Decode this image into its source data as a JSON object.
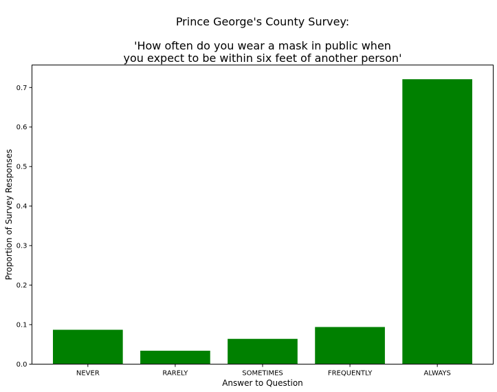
{
  "chart_data": {
    "type": "bar",
    "title_lines": [
      "Prince George's County Survey:",
      "'How often do you wear a mask in public when",
      "you expect to be within six feet of another person'"
    ],
    "xlabel": "Answer to Question",
    "ylabel": "Proportion of Survey Responses",
    "categories": [
      "NEVER",
      "RARELY",
      "SOMETIMES",
      "FREQUENTLY",
      "ALWAYS"
    ],
    "values": [
      0.087,
      0.034,
      0.064,
      0.094,
      0.721
    ],
    "ylim": [
      0,
      0.757
    ],
    "yticks": [
      0.0,
      0.1,
      0.2,
      0.3,
      0.4,
      0.5,
      0.6,
      0.7
    ],
    "ytick_labels": [
      "0.0",
      "0.1",
      "0.2",
      "0.3",
      "0.4",
      "0.5",
      "0.6",
      "0.7"
    ],
    "bar_color": "#008000",
    "grid": false,
    "legend": "none"
  }
}
